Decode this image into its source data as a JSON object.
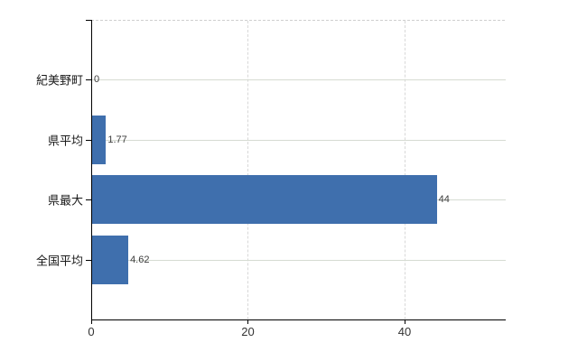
{
  "chart_data": {
    "type": "bar",
    "orientation": "horizontal",
    "categories": [
      "紀美野町",
      "県平均",
      "県最大",
      "全国平均"
    ],
    "values": [
      0,
      1.77,
      44,
      4.62
    ],
    "value_labels": [
      "0",
      "1.77",
      "44",
      "4.62"
    ],
    "x_ticks": [
      0,
      20,
      40
    ],
    "x_tick_labels": [
      "0",
      "20",
      "40"
    ],
    "xlim": [
      0,
      52.8
    ],
    "grid": true,
    "legend": false
  },
  "colors": {
    "background": "#ffffff",
    "bar": "#3f6fad",
    "axis": "#000000",
    "grid_horizontal": "#d6dbd2",
    "grid_vertical": "#d8d8d8",
    "frame_top": "#cfcfcf",
    "category_label": "#1a1a1a",
    "value_label": "#3c3c3c",
    "tick_label": "#333333"
  }
}
